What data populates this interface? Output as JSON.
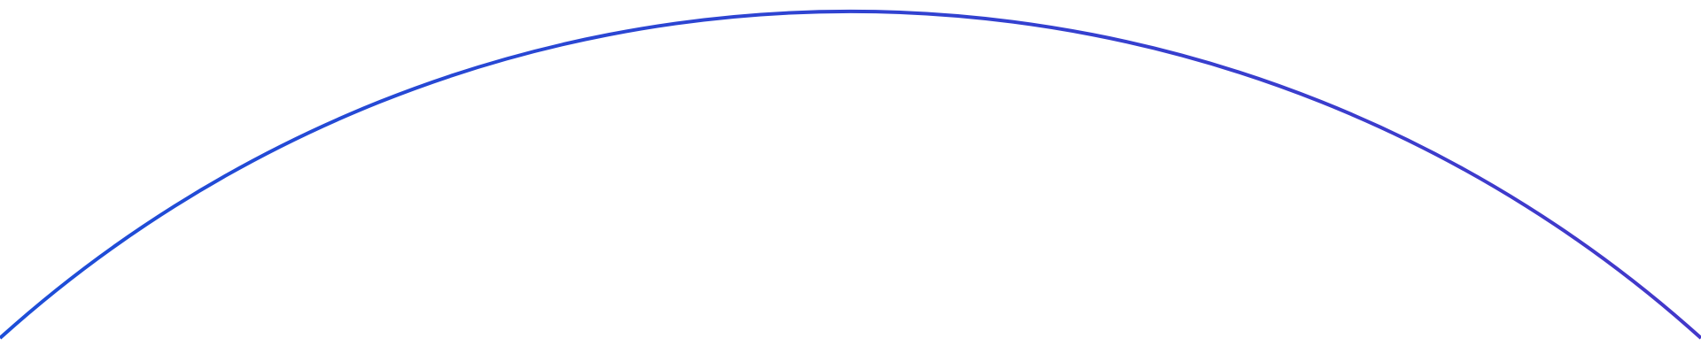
{
  "colors": {
    "background": "#ffffff",
    "arc_start": "#1d4ed8",
    "arc_end": "#4338ca"
  }
}
